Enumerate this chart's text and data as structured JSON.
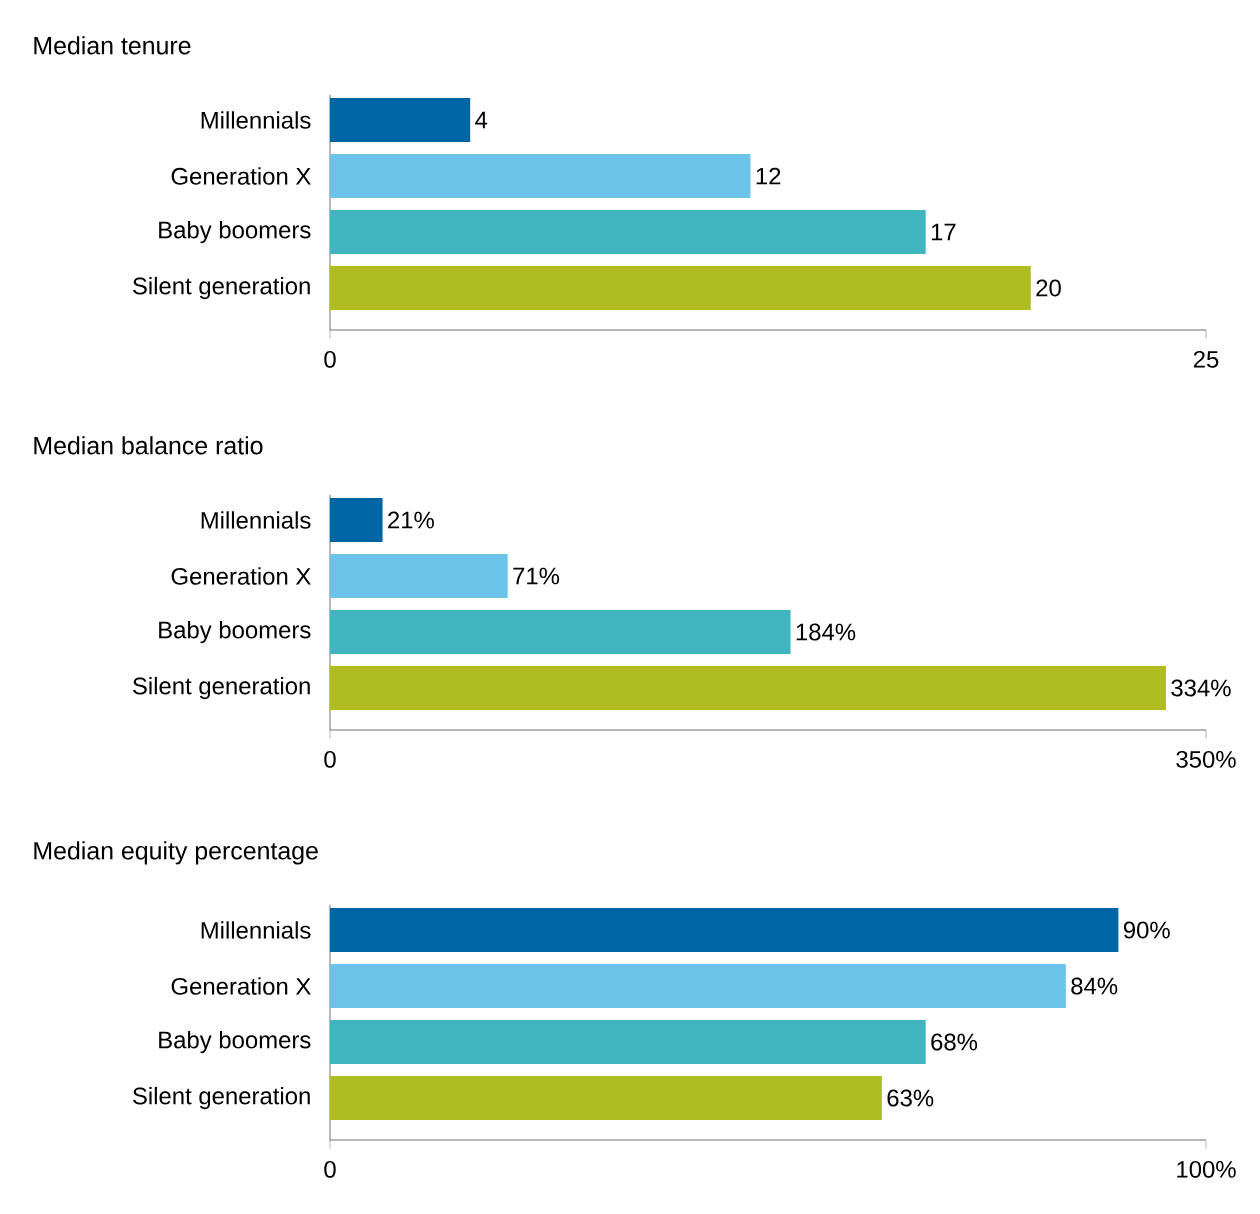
{
  "chart_data": [
    {
      "type": "bar",
      "orientation": "horizontal",
      "title": "Median tenure",
      "categories": [
        "Millennials",
        "Generation X",
        "Baby boomers",
        "Silent generation"
      ],
      "values": [
        4,
        12,
        17,
        20
      ],
      "colors": [
        "#0065a4",
        "#6cc3ea",
        "#40b5c0",
        "#afbd22"
      ],
      "xlim": [
        0,
        25
      ],
      "xticks": [
        0,
        25
      ],
      "data_labels": true
    },
    {
      "type": "bar",
      "orientation": "horizontal",
      "title": "Median balance ratio",
      "categories": [
        "Millennials",
        "Generation X",
        "Baby boomers",
        "Silent generation"
      ],
      "values": [
        21,
        71,
        184,
        334
      ],
      "value_labels": [
        "21%",
        "71%",
        "184%",
        "334%"
      ],
      "colors": [
        "#0065a4",
        "#6cc3ea",
        "#40b5c0",
        "#afbd22"
      ],
      "xlim": [
        0,
        350
      ],
      "xticks": [
        0,
        {
          "value": 350,
          "label": "350%"
        }
      ]
    },
    {
      "type": "bar",
      "orientation": "horizontal",
      "title": "Median equity percentage",
      "categories": [
        "Millennials",
        "Generation X",
        "Baby boomers",
        "Silent generation"
      ],
      "values": [
        90,
        84,
        68,
        63
      ],
      "value_labels": [
        "90%",
        "84%",
        "68%",
        "63%"
      ],
      "colors": [
        "#0065a4",
        "#6cc3ea",
        "#40b5c0",
        "#afbd22"
      ],
      "xlim": [
        0,
        100
      ],
      "xticks": [
        0,
        {
          "value": 100,
          "label": "100%"
        }
      ]
    }
  ]
}
